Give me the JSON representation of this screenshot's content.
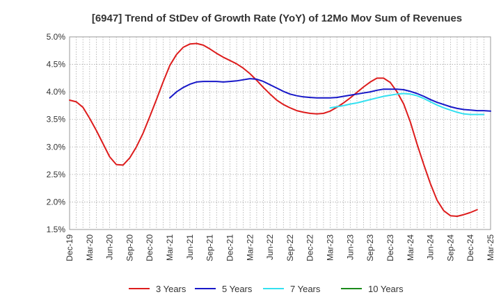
{
  "chart_data": {
    "type": "line",
    "title": "[6947]  Trend of StDev of Growth Rate (YoY) of 12Mo Mov Sum of Revenues",
    "xlabel": "",
    "ylabel": "",
    "ylim": [
      1.5,
      5.0
    ],
    "y_ticks": [
      "5.0%",
      "4.5%",
      "4.0%",
      "3.5%",
      "3.0%",
      "2.5%",
      "2.0%",
      "1.5%"
    ],
    "x_ticks": [
      "Dec-19",
      "Mar-20",
      "Jun-20",
      "Sep-20",
      "Dec-20",
      "Mar-21",
      "Jun-21",
      "Sep-21",
      "Dec-21",
      "Mar-22",
      "Jun-22",
      "Sep-22",
      "Dec-22",
      "Mar-23",
      "Jun-23",
      "Sep-23",
      "Dec-23",
      "Mar-24",
      "Jun-24",
      "Sep-24",
      "Dec-24",
      "Mar-25"
    ],
    "grid": true,
    "legend_position": "bottom",
    "series": [
      {
        "name": "3 Years",
        "color": "#dd1c1c",
        "start_index": 0,
        "values": [
          3.85,
          3.82,
          3.72,
          3.52,
          3.3,
          3.06,
          2.82,
          2.68,
          2.67,
          2.8,
          3.0,
          3.25,
          3.55,
          3.86,
          4.18,
          4.48,
          4.68,
          4.81,
          4.87,
          4.88,
          4.85,
          4.78,
          4.7,
          4.63,
          4.57,
          4.51,
          4.43,
          4.33,
          4.21,
          4.08,
          3.96,
          3.85,
          3.77,
          3.71,
          3.66,
          3.63,
          3.61,
          3.6,
          3.61,
          3.65,
          3.72,
          3.8,
          3.89,
          3.99,
          4.09,
          4.18,
          4.25,
          4.25,
          4.17,
          4.0,
          3.78,
          3.45,
          3.05,
          2.68,
          2.33,
          2.03,
          1.84,
          1.75,
          1.74,
          1.77,
          1.81,
          1.86
        ]
      },
      {
        "name": "5 Years",
        "color": "#1717c8",
        "start_index": 15,
        "values": [
          3.89,
          4.0,
          4.08,
          4.14,
          4.18,
          4.19,
          4.19,
          4.19,
          4.18,
          4.19,
          4.2,
          4.22,
          4.24,
          4.23,
          4.19,
          4.13,
          4.07,
          4.01,
          3.96,
          3.93,
          3.91,
          3.9,
          3.89,
          3.89,
          3.89,
          3.9,
          3.92,
          3.94,
          3.96,
          3.98,
          4.0,
          4.03,
          4.05,
          4.05,
          4.05,
          4.04,
          4.01,
          3.97,
          3.92,
          3.86,
          3.81,
          3.77,
          3.73,
          3.7,
          3.68,
          3.67,
          3.66,
          3.66,
          3.65
        ]
      },
      {
        "name": "7 Years",
        "color": "#33e0f0",
        "start_index": 39,
        "values": [
          3.71,
          3.73,
          3.75,
          3.78,
          3.8,
          3.83,
          3.86,
          3.89,
          3.92,
          3.94,
          3.96,
          3.97,
          3.96,
          3.93,
          3.88,
          3.82,
          3.76,
          3.71,
          3.67,
          3.63,
          3.6,
          3.59,
          3.59,
          3.59
        ]
      },
      {
        "name": "10 Years",
        "color": "#1a8a1a",
        "start_index": 0,
        "values": []
      }
    ]
  }
}
